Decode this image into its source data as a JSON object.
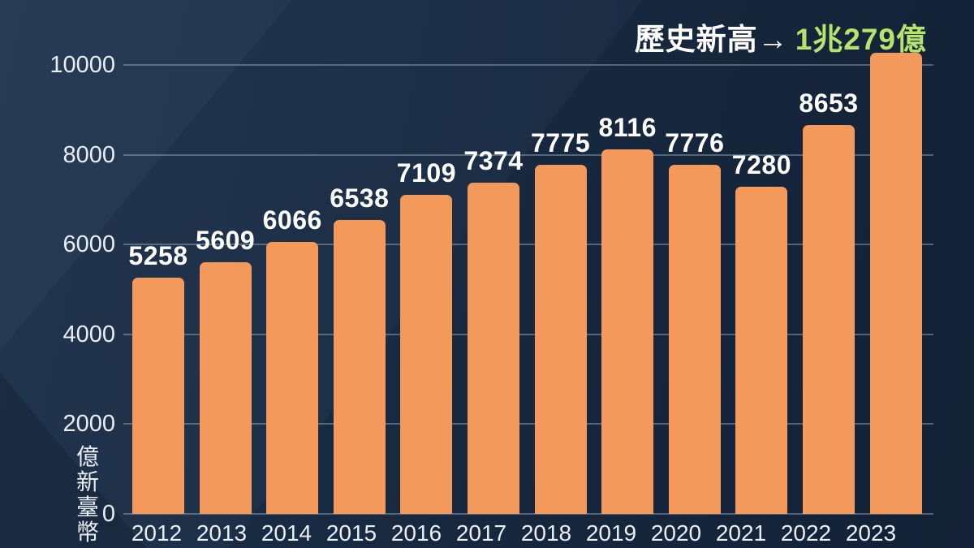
{
  "title": {
    "prefix": "歷史新高→",
    "value": "1兆279億"
  },
  "colors": {
    "background": "#16283E",
    "bar": "#F2995B",
    "title_prefix": "#FFFFFF",
    "title_value": "#B5E36E",
    "axis_text": "#E9EEF5",
    "gridline": "rgba(166,186,206,0.42)"
  },
  "y_axis": {
    "unit_label": "億新臺幣",
    "ticks": [
      0,
      2000,
      4000,
      6000,
      8000,
      10000
    ]
  },
  "chart_data": {
    "type": "bar",
    "title": "歷史新高→ 1兆279億",
    "categories": [
      "2012",
      "2013",
      "2014",
      "2015",
      "2016",
      "2017",
      "2018",
      "2019",
      "2020",
      "2021",
      "2022",
      "2023"
    ],
    "values": [
      5258,
      5609,
      6066,
      6538,
      7109,
      7374,
      7775,
      8116,
      7776,
      7280,
      8653,
      10279
    ],
    "bar_labels": [
      "5258",
      "5609",
      "6066",
      "6538",
      "7109",
      "7374",
      "7775",
      "8116",
      "7776",
      "7280",
      "8653",
      ""
    ],
    "xlabel": "",
    "ylabel": "億新臺幣",
    "ylim": [
      0,
      10000
    ],
    "yticks": [
      0,
      2000,
      4000,
      6000,
      8000,
      10000
    ],
    "grid": true,
    "legend": false,
    "annotation": {
      "text": "歷史新高→ 1兆279億",
      "target": "2023"
    }
  }
}
